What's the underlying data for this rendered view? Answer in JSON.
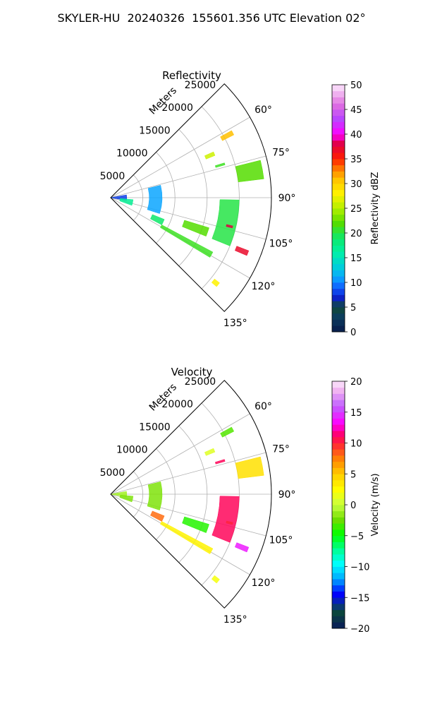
{
  "title": "SKYLER-HU  20240326  155601.356 UTC Elevation 02°",
  "chart_data": [
    {
      "type": "polar-sector",
      "title": "Reflectivity",
      "r_label": "Meters",
      "r_ticks": [
        5000,
        10000,
        15000,
        20000,
        25000
      ],
      "rlim": [
        0,
        25000
      ],
      "theta_ticks": [
        60,
        75,
        90,
        105,
        120,
        135
      ],
      "theta_range": [
        45,
        135
      ],
      "grid": true,
      "colorbar": {
        "label": "Reflectivity dBZ",
        "vmin": 0,
        "vmax": 50,
        "ticks": [
          0,
          5,
          10,
          15,
          20,
          25,
          30,
          35,
          40,
          45,
          50
        ],
        "colormap": "pyart_HomeyerRainbow"
      },
      "echoes": [
        {
          "r0": 0,
          "r1": 2500,
          "a0": 80,
          "a1": 100,
          "v": 8
        },
        {
          "r0": 1500,
          "r1": 3500,
          "a0": 95,
          "a1": 110,
          "v": 17
        },
        {
          "r0": 6000,
          "r1": 8000,
          "a0": 76,
          "a1": 108,
          "v": 11
        },
        {
          "r0": 7000,
          "r1": 9000,
          "a0": 112,
          "a1": 118,
          "v": 19
        },
        {
          "r0": 9000,
          "r1": 18000,
          "a0": 118,
          "a1": 121,
          "v": 21
        },
        {
          "r0": 17000,
          "r1": 20000,
          "a0": 91,
          "a1": 112,
          "v": 20
        },
        {
          "r0": 20000,
          "r1": 24000,
          "a0": 76,
          "a1": 83,
          "v": 22
        },
        {
          "r0": 21000,
          "r1": 23000,
          "a0": 111,
          "a1": 113,
          "v": 37
        },
        {
          "r0": 18500,
          "r1": 19500,
          "a0": 103,
          "a1": 104,
          "v": 38
        },
        {
          "r0": 19500,
          "r1": 21500,
          "a0": 61,
          "a1": 63,
          "v": 31
        },
        {
          "r0": 16000,
          "r1": 17500,
          "a0": 66,
          "a1": 68,
          "v": 26
        },
        {
          "r0": 17000,
          "r1": 18500,
          "a0": 73,
          "a1": 74,
          "v": 21
        },
        {
          "r0": 20500,
          "r1": 21500,
          "a0": 128,
          "a1": 130,
          "v": 28
        },
        {
          "r0": 12000,
          "r1": 16000,
          "a0": 107,
          "a1": 112,
          "v": 22
        }
      ]
    },
    {
      "type": "polar-sector",
      "title": "Velocity",
      "r_label": "Meters",
      "r_ticks": [
        5000,
        10000,
        15000,
        20000,
        25000
      ],
      "rlim": [
        0,
        25000
      ],
      "theta_ticks": [
        60,
        75,
        90,
        105,
        120,
        135
      ],
      "theta_range": [
        45,
        135
      ],
      "grid": true,
      "colorbar": {
        "label": "Velocity (m/s)",
        "vmin": -20,
        "vmax": 20,
        "ticks": [
          -20,
          -15,
          -10,
          -5,
          0,
          5,
          10,
          15,
          20
        ],
        "colormap": "pyart_BuDRd18"
      },
      "echoes": [
        {
          "r0": 0,
          "r1": 2500,
          "a0": 80,
          "a1": 100,
          "v": -1
        },
        {
          "r0": 1500,
          "r1": 3500,
          "a0": 95,
          "a1": 110,
          "v": -2
        },
        {
          "r0": 6000,
          "r1": 8000,
          "a0": 76,
          "a1": 108,
          "v": -2
        },
        {
          "r0": 7000,
          "r1": 9000,
          "a0": 112,
          "a1": 118,
          "v": 8
        },
        {
          "r0": 9000,
          "r1": 18000,
          "a0": 118,
          "a1": 121,
          "v": 3
        },
        {
          "r0": 17000,
          "r1": 20000,
          "a0": 91,
          "a1": 112,
          "v": 11
        },
        {
          "r0": 20000,
          "r1": 24000,
          "a0": 76,
          "a1": 83,
          "v": 4
        },
        {
          "r0": 21000,
          "r1": 23000,
          "a0": 111,
          "a1": 113,
          "v": 14
        },
        {
          "r0": 18500,
          "r1": 19500,
          "a0": 103,
          "a1": 104,
          "v": 10
        },
        {
          "r0": 19500,
          "r1": 21500,
          "a0": 61,
          "a1": 63,
          "v": -3
        },
        {
          "r0": 16000,
          "r1": 17500,
          "a0": 66,
          "a1": 68,
          "v": 1
        },
        {
          "r0": 17000,
          "r1": 18500,
          "a0": 73,
          "a1": 74,
          "v": 11
        },
        {
          "r0": 20500,
          "r1": 21500,
          "a0": 128,
          "a1": 130,
          "v": 2
        },
        {
          "r0": 12000,
          "r1": 16000,
          "a0": 107,
          "a1": 112,
          "v": -4
        }
      ]
    }
  ]
}
